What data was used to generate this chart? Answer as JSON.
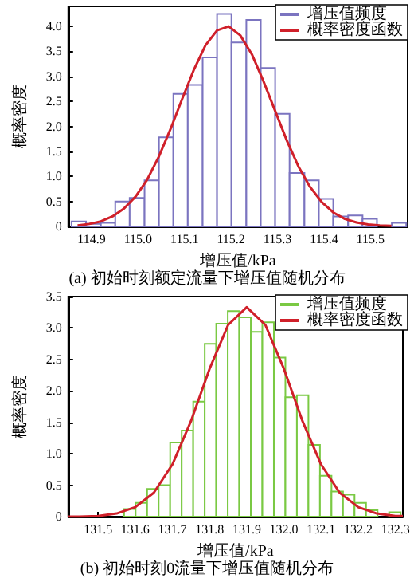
{
  "chart_data": [
    {
      "type": "histogram",
      "xlabel": "增压值/kPa",
      "ylabel": "概率密度",
      "annotations": [
        "(a) 初始时刻额定流量下增压值随机分布"
      ],
      "legend": "top right",
      "marker": "none",
      "line_style": "solid",
      "grid": false,
      "xlim": [
        114.85,
        115.58
      ],
      "xticks": [
        114.9,
        {
          "value": 115,
          "label": "115.0"
        },
        115.1,
        115.2,
        115.3,
        115.4,
        115.5
      ],
      "ylim": [
        0,
        4.4
      ],
      "yticks": [
        0,
        0.5,
        {
          "value": 1,
          "label": "1.0"
        },
        1.5,
        {
          "value": 2,
          "label": "2.0"
        },
        2.5,
        {
          "value": 3,
          "label": "3.0"
        },
        3.5,
        {
          "value": 4,
          "label": "4.0"
        }
      ],
      "bins": [
        114.857,
        114.888,
        114.92,
        114.951,
        114.982,
        115.014,
        115.045,
        115.076,
        115.107,
        115.139,
        115.17,
        115.201,
        115.233,
        115.264,
        115.295,
        115.326,
        115.358,
        115.389,
        115.42,
        115.452,
        115.483,
        115.514,
        115.546,
        115.577
      ],
      "series": [
        {
          "name": "增压值频度",
          "color": "#7b74c0",
          "values": [
            0.1,
            0.05,
            0.07,
            0.5,
            0.57,
            0.92,
            1.78,
            2.65,
            2.83,
            3.38,
            4.25,
            3.68,
            4.13,
            3.17,
            2.25,
            1.07,
            0.92,
            0.55,
            0.2,
            0.22,
            0.15,
            null,
            0.07
          ]
        },
        {
          "name": "概率密度函数",
          "type": "line",
          "color": "#d0202a",
          "x": [
            114.87,
            114.895,
            114.92,
            114.945,
            114.97,
            114.995,
            115.02,
            115.045,
            115.07,
            115.095,
            115.12,
            115.145,
            115.17,
            115.195,
            115.22,
            115.245,
            115.27,
            115.295,
            115.32,
            115.345,
            115.37,
            115.395,
            115.42,
            115.445,
            115.47,
            115.495,
            115.52,
            115.545
          ],
          "values": [
            0.02,
            0.05,
            0.1,
            0.2,
            0.36,
            0.6,
            0.94,
            1.4,
            1.95,
            2.55,
            3.13,
            3.62,
            3.92,
            4.0,
            3.82,
            3.44,
            2.9,
            2.31,
            1.72,
            1.2,
            0.79,
            0.49,
            0.28,
            0.15,
            0.08,
            0.04,
            0.02,
            0.01
          ]
        }
      ]
    },
    {
      "type": "histogram",
      "xlabel": "增压值/kPa",
      "ylabel": "概率密度",
      "annotations": [
        "(b) 初始时刻0流量下增压值随机分布"
      ],
      "legend": "top right",
      "marker": "none",
      "line_style": "solid",
      "grid": false,
      "xlim": [
        131.42,
        132.32
      ],
      "xticks": [
        131.5,
        131.6,
        131.7,
        131.8,
        131.9,
        {
          "value": 132,
          "label": "132.0"
        },
        132.1,
        132.2,
        132.3
      ],
      "ylim": [
        0,
        3.5
      ],
      "yticks": [
        0,
        0.5,
        {
          "value": 1,
          "label": "1.0"
        },
        1.5,
        {
          "value": 2,
          "label": "2.0"
        },
        2.5,
        {
          "value": 3,
          "label": "3.0"
        },
        3.5
      ],
      "bins": [
        131.57,
        131.601,
        131.632,
        131.663,
        131.694,
        131.725,
        131.756,
        131.787,
        131.818,
        131.849,
        131.88,
        131.911,
        131.942,
        131.973,
        132.004,
        132.035,
        132.066,
        132.097,
        132.128,
        132.159,
        132.19,
        132.221,
        132.252,
        132.283,
        132.314
      ],
      "series": [
        {
          "name": "增压值频度",
          "color": "#7ac943",
          "values": [
            0.12,
            0.22,
            0.44,
            0.5,
            1.18,
            1.37,
            1.83,
            2.75,
            3.07,
            3.27,
            3.17,
            2.94,
            3.09,
            2.53,
            1.9,
            1.93,
            1.14,
            0.65,
            0.4,
            0.35,
            0.22,
            0.1,
            null,
            0.07
          ]
        },
        {
          "name": "概率密度函数",
          "type": "line",
          "color": "#d0202a",
          "x": [
            131.42,
            131.45,
            131.5,
            131.55,
            131.6,
            131.65,
            131.7,
            131.75,
            131.8,
            131.85,
            131.9,
            131.95,
            132.0,
            132.05,
            132.1,
            132.15,
            132.2,
            132.25,
            132.3,
            132.32
          ],
          "values": [
            0.0,
            0.0,
            0.01,
            0.05,
            0.15,
            0.38,
            0.83,
            1.52,
            2.35,
            3.05,
            3.33,
            3.05,
            2.35,
            1.52,
            0.83,
            0.38,
            0.15,
            0.05,
            0.01,
            0.01
          ]
        }
      ]
    }
  ]
}
